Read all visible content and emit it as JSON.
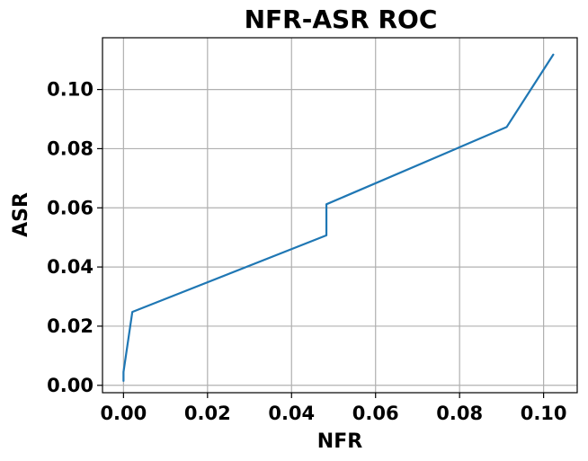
{
  "chart_data": {
    "type": "line",
    "title": "NFR-ASR ROC",
    "xlabel": "NFR",
    "ylabel": "ASR",
    "xlim": [
      -0.005,
      0.108
    ],
    "ylim": [
      -0.0025,
      0.1175
    ],
    "grid": true,
    "x_ticks": [
      0.0,
      0.02,
      0.04,
      0.06,
      0.08,
      0.1
    ],
    "x_tick_labels": [
      "0.00",
      "0.02",
      "0.04",
      "0.06",
      "0.08",
      "0.10"
    ],
    "y_ticks": [
      0.0,
      0.02,
      0.04,
      0.06,
      0.08,
      0.1
    ],
    "y_tick_labels": [
      "0.00",
      "0.02",
      "0.04",
      "0.06",
      "0.08",
      "0.10"
    ],
    "series": [
      {
        "color": "#1f77b4",
        "x": [
          0.0,
          0.0,
          0.0021,
          0.0483,
          0.0483,
          0.0912,
          0.1023
        ],
        "y": [
          0.0015,
          0.0045,
          0.0248,
          0.0507,
          0.0612,
          0.0873,
          0.1118
        ]
      }
    ]
  }
}
